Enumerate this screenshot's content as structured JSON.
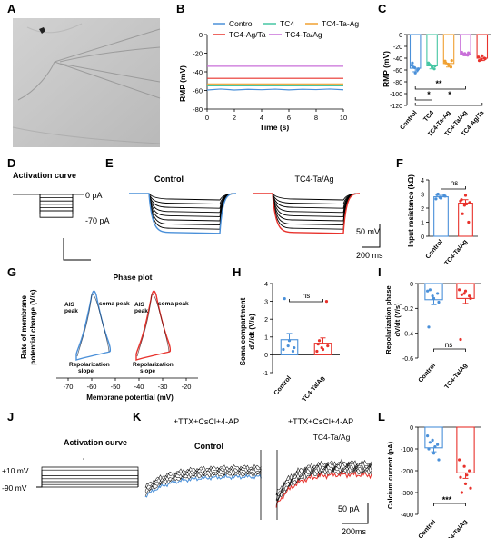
{
  "panels": {
    "A": "A",
    "B": "B",
    "C": "C",
    "D": "D",
    "E": "E",
    "F": "F",
    "G": "G",
    "H": "H",
    "I": "I",
    "J": "J",
    "K": "K",
    "L": "L"
  },
  "colors": {
    "control": "#4a90d9",
    "tc4": "#45c6a3",
    "tc4_ta_ag": "#f0a030",
    "tc4_ag_ta": "#e8322c",
    "tc4_ta_ag_b": "#c86fd8",
    "treated": "#e8322c",
    "trace": "#000000",
    "micrograph_bg": "#c9c9c9"
  },
  "icons": {
    "micrograph": "pipette-micrograph-icon"
  },
  "B": {
    "legend": [
      "Control",
      "TC4",
      "TC4-Ta-Ag",
      "TC4-Ag/Ta",
      "TC4-Ta/Ag"
    ],
    "ylabel": "RMP (mV)",
    "xlabel": "Time (s)"
  },
  "C": {
    "ylabel": "RMP (mV)",
    "sig1": "**",
    "sig2": "*",
    "sig3": "*"
  },
  "D": {
    "title": "Activation curve",
    "top_label": "0 pA",
    "bottom_label": "-70 pA"
  },
  "E": {
    "control_label": "Control",
    "treated_label": "TC4-Ta/Ag",
    "scale_v": "50 mV",
    "scale_t": "200 ms"
  },
  "F": {
    "ylabel": "Input resistance (kΩ)",
    "sig": "ns"
  },
  "G": {
    "title": "Phase plot",
    "ylabel_1": "Rate of membrane",
    "ylabel_2": "potential change (V/s)",
    "xlabel": "Membrane potential (mV)",
    "ais_1": "AIS",
    "ais_2": "peak",
    "soma_peak": "soma peak",
    "ais_b_1": "AIS",
    "ais_b_2": "peak",
    "soma_peak_b": "soma peak",
    "repol_1": "Repolarization",
    "repol_2": "slope",
    "repol_b_1": "Repolarization",
    "repol_b_2": "slope"
  },
  "H": {
    "ylabel_1": "Soma compartment",
    "ylabel_2": "dV/dt (V/s)",
    "sig": "ns"
  },
  "I": {
    "ylabel_1": "Repolarization phase",
    "ylabel_2": "dV/dt (V/s)",
    "sig": "ns"
  },
  "J": {
    "title": "Activation curve",
    "top_label": "+10 mV",
    "bottom_label": "-90 mV"
  },
  "K": {
    "cond_1": "+TTX+CsCl+4-AP",
    "cond_2": "+TTX+CsCl+4-AP",
    "control_label": "Control",
    "treated_label": "TC4-Ta/Ag",
    "scale_i": "50 pA",
    "scale_t": "200ms"
  },
  "L": {
    "ylabel": "Calcium current (pA)",
    "sig": "***"
  },
  "chart_data": [
    {
      "panel": "B",
      "type": "line",
      "xlabel": "Time (s)",
      "ylabel": "RMP (mV)",
      "xlim": [
        0,
        10
      ],
      "ylim": [
        -80,
        0
      ],
      "xticks": [
        0,
        2,
        4,
        6,
        8,
        10
      ],
      "yticks": [
        0,
        -20,
        -40,
        -60,
        -80
      ],
      "legend": "top",
      "series": [
        {
          "name": "Control",
          "color": "#4a90d9",
          "x": [
            0,
            1,
            2,
            3,
            4,
            5,
            6,
            7,
            8,
            9,
            10
          ],
          "values": [
            -59.5,
            -58.5,
            -59.5,
            -58.8,
            -59.2,
            -58.6,
            -59.4,
            -58.7,
            -59.1,
            -58.5,
            -59.3
          ]
        },
        {
          "name": "TC4",
          "color": "#45c6a3",
          "x": [
            0,
            10
          ],
          "values": [
            -55,
            -55
          ]
        },
        {
          "name": "TC4-Ta-Ag",
          "color": "#f0a030",
          "x": [
            0,
            10
          ],
          "values": [
            -53,
            -53
          ]
        },
        {
          "name": "TC4-Ag/Ta",
          "color": "#e8322c",
          "x": [
            0,
            10
          ],
          "values": [
            -47,
            -47
          ]
        },
        {
          "name": "TC4-Ta/Ag",
          "color": "#c86fd8",
          "x": [
            0,
            10
          ],
          "values": [
            -34,
            -34
          ]
        }
      ]
    },
    {
      "panel": "C",
      "type": "bar",
      "ylabel": "RMP (mV)",
      "ylim": [
        -120,
        0
      ],
      "yticks": [
        0,
        -20,
        -40,
        -60,
        -80,
        -100,
        -120
      ],
      "categories": [
        "Control",
        "TC4",
        "TC4-Ta-Ag",
        "TC4-Ta/Ag",
        "TC4-Ag/Ta"
      ],
      "values": [
        -57,
        -53,
        -49,
        -33,
        -40
      ],
      "errors": [
        6,
        5,
        6,
        3,
        4
      ],
      "points": [
        [
          -52,
          -56,
          -60,
          -48,
          -65,
          -58,
          -55
        ],
        [
          -48,
          -52,
          -58,
          -50,
          -55,
          -53
        ],
        [
          -45,
          -50,
          -55,
          -48,
          -52,
          -44
        ],
        [
          -30,
          -32,
          -35,
          -33,
          -34,
          -31
        ],
        [
          -38,
          -42,
          -40,
          -44,
          -36,
          -41
        ]
      ],
      "significance": [
        {
          "from": 0,
          "to": 3,
          "label": "**"
        },
        {
          "from": 0,
          "to": 1,
          "label": "*"
        },
        {
          "from": 0,
          "to": 4,
          "label": "*"
        }
      ]
    },
    {
      "panel": "F",
      "type": "bar",
      "ylabel": "Input resistance (kΩ)",
      "ylim": [
        0,
        4
      ],
      "yticks": [
        0,
        1,
        2,
        3,
        4
      ],
      "categories": [
        "Control",
        "TC4-Ta/Ag"
      ],
      "values": [
        2.8,
        2.35
      ],
      "errors": [
        0.1,
        0.25
      ],
      "points": [
        [
          2.65,
          2.75,
          2.9,
          2.95,
          2.7,
          2.85,
          3.0
        ],
        [
          2.5,
          2.2,
          1.0,
          2.6,
          2.9,
          2.4,
          1.6,
          2.3
        ]
      ],
      "significance": [
        {
          "from": 0,
          "to": 1,
          "label": "ns"
        }
      ]
    },
    {
      "panel": "H",
      "type": "bar",
      "ylabel": "Soma compartment dV/dt (V/s)",
      "ylim": [
        -1,
        4
      ],
      "yticks": [
        -1,
        0,
        1,
        2,
        3,
        4
      ],
      "categories": [
        "Control",
        "TC4-Ta/Ag"
      ],
      "values": [
        0.85,
        0.65
      ],
      "errors": [
        0.35,
        0.3
      ],
      "points": [
        [
          0.3,
          0.5,
          0.2,
          3.15,
          0.8,
          0.4
        ],
        [
          0.2,
          0.4,
          3.0,
          0.6,
          0.3,
          0.5,
          0.8
        ]
      ],
      "significance": [
        {
          "from": 0,
          "to": 1,
          "label": "ns"
        }
      ]
    },
    {
      "panel": "I",
      "type": "bar",
      "ylabel": "Repolarization phase dV/dt (V/s)",
      "ylim": [
        -0.6,
        0
      ],
      "yticks": [
        0,
        -0.2,
        -0.4,
        -0.6
      ],
      "categories": [
        "Control",
        "TC4-Ta/Ag"
      ],
      "values": [
        -0.13,
        -0.12
      ],
      "errors": [
        0.04,
        0.04
      ],
      "points": [
        [
          -0.06,
          -0.1,
          -0.08,
          -0.35,
          -0.12,
          -0.15,
          -0.05
        ],
        [
          -0.05,
          -0.08,
          -0.1,
          -0.45,
          -0.06,
          -0.12,
          -0.09
        ]
      ],
      "significance": [
        {
          "from": 0,
          "to": 1,
          "label": "ns"
        }
      ]
    },
    {
      "panel": "L",
      "type": "bar",
      "ylabel": "Calcium current (pA)",
      "ylim": [
        -400,
        0
      ],
      "yticks": [
        0,
        -100,
        -200,
        -300,
        -400
      ],
      "categories": [
        "Control",
        "TC4-Ta/Ag"
      ],
      "values": [
        -95,
        -210
      ],
      "errors": [
        18,
        25
      ],
      "points": [
        [
          -40,
          -60,
          -80,
          -100,
          -120,
          -150,
          -70,
          -90
        ],
        [
          -150,
          -180,
          -200,
          -230,
          -260,
          -280,
          -300,
          -220
        ]
      ],
      "significance": [
        {
          "from": 0,
          "to": 1,
          "label": "***"
        }
      ]
    },
    {
      "panel": "G",
      "type": "line",
      "xlabel": "Membrane potential (mV)",
      "xlim": [
        -75,
        -15
      ],
      "xticks": [
        -70,
        -60,
        -50,
        -40,
        -30,
        -20
      ]
    }
  ]
}
